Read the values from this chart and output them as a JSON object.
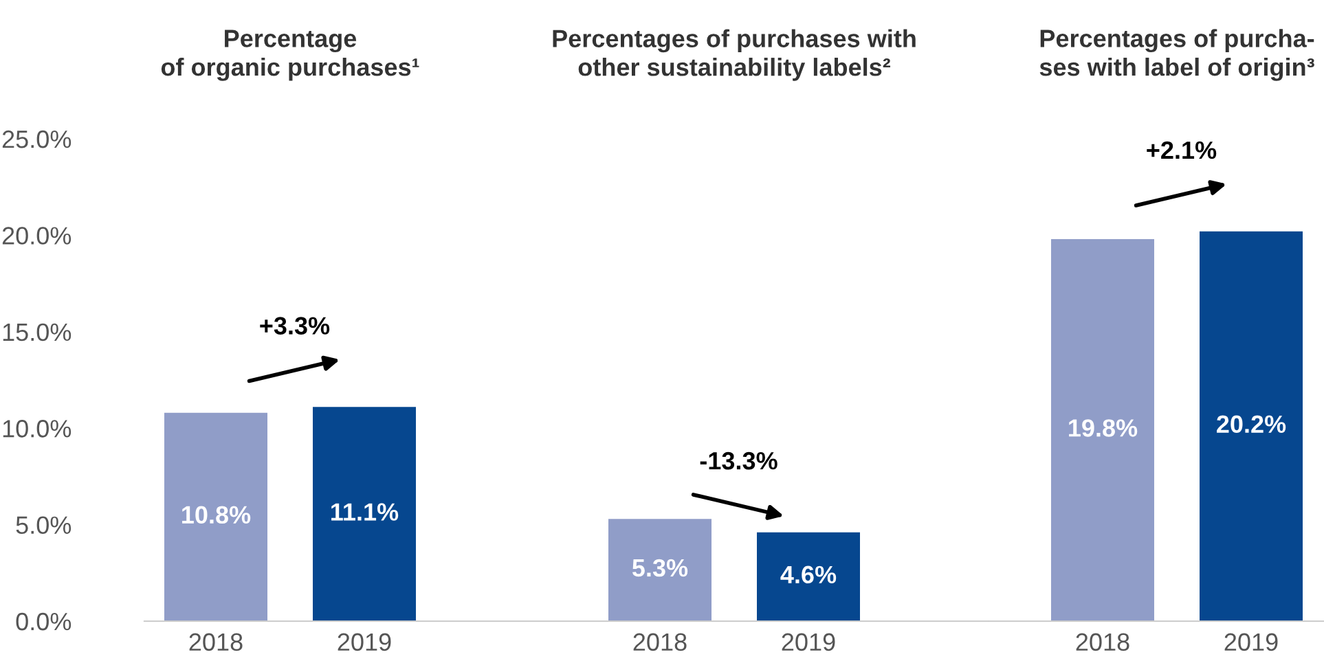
{
  "chart_data": [
    {
      "type": "bar",
      "title": "Percentage\nof organic purchases¹",
      "categories": [
        "2018",
        "2019"
      ],
      "values": [
        10.8,
        11.1
      ],
      "colors": [
        "#909dc8",
        "#06478f"
      ],
      "value_labels": [
        "10.8%",
        "11.1%"
      ],
      "annotations": [
        "+3.3%"
      ],
      "ylim": [
        0,
        25
      ],
      "yticks": [
        {
          "value": 0,
          "label": "0.0%"
        },
        {
          "value": 5,
          "label": "5.0%"
        },
        {
          "value": 10,
          "label": "10.0%"
        },
        {
          "value": 15,
          "label": "15.0%"
        },
        {
          "value": 20,
          "label": "20.0%"
        },
        {
          "value": 25,
          "label": "25.0%"
        }
      ],
      "grid": false,
      "legend": false
    },
    {
      "type": "bar",
      "title": "Percentages of purchases with\nother sustainability labels²",
      "categories": [
        "2018",
        "2019"
      ],
      "values": [
        5.3,
        4.6
      ],
      "colors": [
        "#909dc8",
        "#06478f"
      ],
      "value_labels": [
        "5.3%",
        "4.6%"
      ],
      "annotations": [
        "-13.3%"
      ],
      "ylim": [
        0,
        25
      ],
      "tick_labels": "x",
      "grid": false,
      "legend": false
    },
    {
      "type": "bar",
      "title": "Percentages of purcha-\nses with label of origin³",
      "categories": [
        "2018",
        "2019"
      ],
      "values": [
        19.8,
        20.2
      ],
      "colors": [
        "#909dc8",
        "#06478f"
      ],
      "value_labels": [
        "19.8%",
        "20.2%"
      ],
      "annotations": [
        "+2.1%"
      ],
      "ylim": [
        0,
        25
      ],
      "tick_labels": "x",
      "grid": false,
      "legend": false
    }
  ]
}
